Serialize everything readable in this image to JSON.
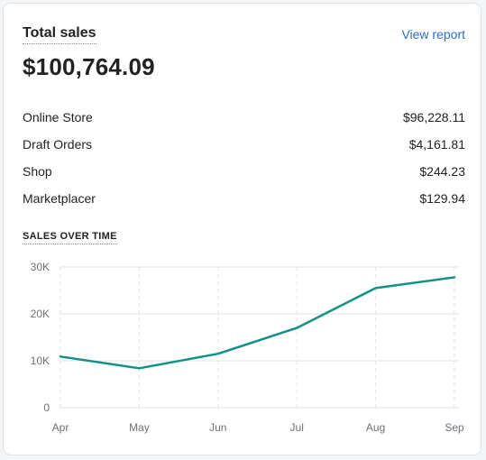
{
  "card": {
    "title": "Total sales",
    "view_report": "View report",
    "total": "$100,764.09"
  },
  "breakdown": [
    {
      "label": "Online Store",
      "value": "$96,228.11"
    },
    {
      "label": "Draft Orders",
      "value": "$4,161.81"
    },
    {
      "label": "Shop",
      "value": "$244.23"
    },
    {
      "label": "Marketplacer",
      "value": "$129.94"
    }
  ],
  "colors": {
    "line": "#0f9186",
    "grid": "#e1e3e5",
    "link": "#2c6ecb"
  },
  "chart_data": {
    "type": "line",
    "title": "SALES OVER TIME",
    "categories": [
      "Apr",
      "May",
      "Jun",
      "Jul",
      "Aug",
      "Sep"
    ],
    "values": [
      10900,
      8400,
      11500,
      17000,
      25500,
      27800
    ],
    "y_ticks": [
      "0",
      "10K",
      "20K",
      "30K"
    ],
    "ylim": [
      0,
      30000
    ],
    "grid": true
  }
}
